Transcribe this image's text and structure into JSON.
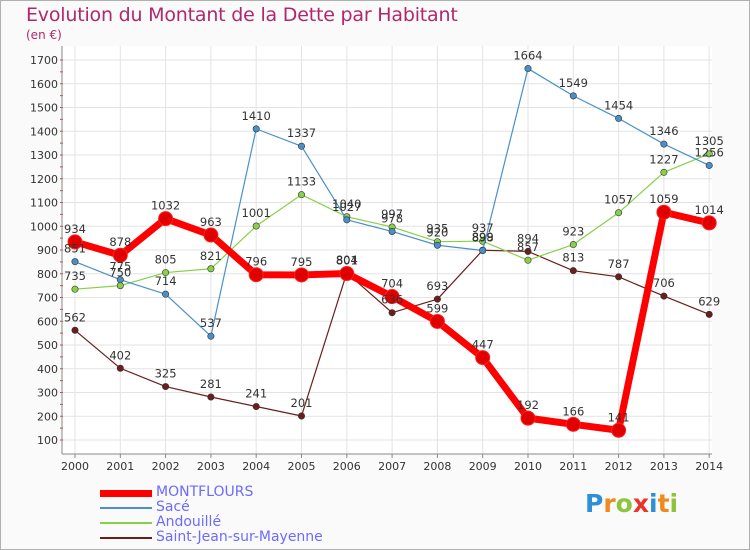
{
  "page": {
    "title": "Evolution du Montant de la Dette par Habitant",
    "unit": "(en €)"
  },
  "logo": {
    "text": "Proxiti",
    "letters": [
      {
        "ch": "P",
        "color": "#2e8fd9"
      },
      {
        "ch": "r",
        "color": "#f08a1c"
      },
      {
        "ch": "o",
        "color": "#8cc43c"
      },
      {
        "ch": "x",
        "color": "#e8342c"
      },
      {
        "ch": "i",
        "color": "#2e8fd9"
      },
      {
        "ch": "t",
        "color": "#f08a1c"
      },
      {
        "ch": "i",
        "color": "#8cc43c"
      }
    ]
  },
  "chart_data": {
    "type": "line",
    "title": "Evolution du Montant de la Dette par Habitant",
    "ylabel": "(en €)",
    "xlabel": "",
    "ylim": [
      100,
      1700
    ],
    "yticks": [
      100,
      200,
      300,
      400,
      500,
      600,
      700,
      800,
      900,
      1000,
      1100,
      1200,
      1300,
      1400,
      1500,
      1600,
      1700
    ],
    "categories": [
      "2000",
      "2001",
      "2002",
      "2003",
      "2004",
      "2005",
      "2006",
      "2007",
      "2008",
      "2009",
      "2010",
      "2011",
      "2012",
      "2013",
      "2014"
    ],
    "grid": true,
    "legend_position": "bottom-left",
    "series": [
      {
        "name": "MONTFLOURS",
        "color": "#ff0000",
        "labelColor": "#6b6bff",
        "values": [
          934,
          878,
          1032,
          963,
          796,
          795,
          801,
          704,
          599,
          447,
          192,
          166,
          141,
          1059,
          1014
        ],
        "labels": [
          "934",
          "878",
          "1032",
          "963",
          "796",
          "795",
          "801",
          "704",
          "599",
          "447",
          "192",
          "166",
          "141",
          "1059",
          "1014"
        ]
      },
      {
        "name": "Sacé",
        "color": "#4a90c8",
        "labelColor": "#6b6bff",
        "values": [
          851,
          775,
          714,
          537,
          1410,
          1337,
          1027,
          978,
          920,
          898,
          1664,
          1549,
          1454,
          1346,
          1256
        ],
        "labels": [
          "851",
          "775",
          "714",
          "537",
          "1410",
          "1337",
          "1027",
          "978",
          "920",
          "898",
          "1664",
          "1549",
          "1454",
          "1346",
          "1256"
        ]
      },
      {
        "name": "Andouillé",
        "color": "#88d048",
        "labelColor": "#6b6bff",
        "values": [
          735,
          750,
          805,
          821,
          1001,
          1133,
          1040,
          997,
          935,
          937,
          857,
          923,
          1057,
          1227,
          1305
        ],
        "labels": [
          "735",
          "750",
          "805",
          "821",
          "1001",
          "1133",
          "1040",
          "997",
          "935",
          "937",
          "857",
          "923",
          "1057",
          "1227",
          "1305"
        ]
      },
      {
        "name": "Saint-Jean-sur-Mayenne",
        "color": "#6b1e1e",
        "labelColor": "#6b6bff",
        "values": [
          562,
          402,
          325,
          281,
          241,
          201,
          804,
          636,
          693,
          899,
          894,
          813,
          787,
          706,
          629
        ],
        "labels": [
          "562",
          "402",
          "325",
          "281",
          "241",
          "201",
          "804",
          "636",
          "693",
          "899",
          "894",
          "813",
          "787",
          "706",
          "629"
        ]
      }
    ]
  }
}
